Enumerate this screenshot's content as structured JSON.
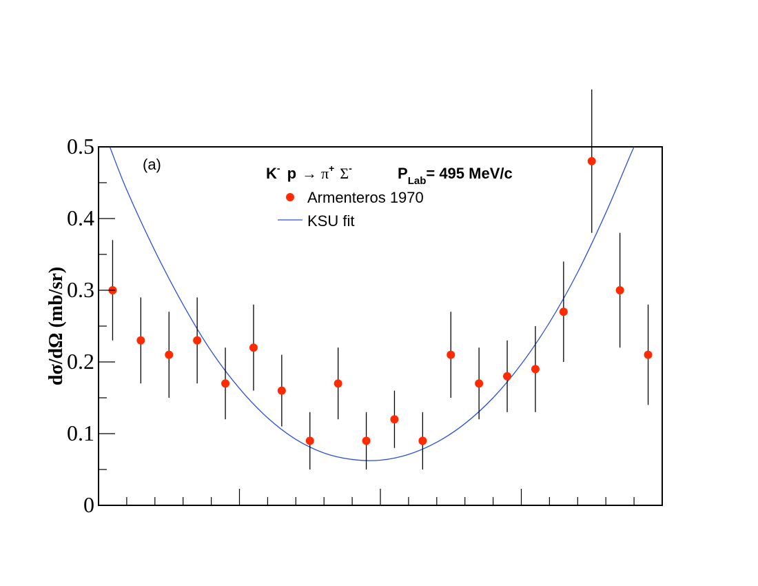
{
  "chart_data": {
    "type": "scatter",
    "panel_label": "(a)",
    "reaction": {
      "k": "K",
      "k_sup": "-",
      "p": "p",
      "arrow": "→",
      "pi": "π",
      "pi_sup": "+",
      "sigma": "Σ",
      "sigma_sup": "-",
      "plab_p": "P",
      "plab_sub": "Lab",
      "plab_value": "= 495 MeV/c"
    },
    "ylabel": "dσ/dΩ (mb/sr)",
    "xlabel": "",
    "xlim": [
      -1,
      1
    ],
    "ylim": [
      0,
      0.5
    ],
    "yticks": [
      0,
      0.1,
      0.2,
      0.3,
      0.4,
      0.5
    ],
    "ytick_labels": [
      "0",
      "0.1",
      "0.2",
      "0.3",
      "0.4",
      "0.5"
    ],
    "xticks_major": [
      -0.5,
      0,
      0.5
    ],
    "xticks_minor_step": 0.1,
    "legend": {
      "placement": "top-center",
      "entries": [
        {
          "label": "Armenteros 1970",
          "marker": "circle",
          "color": "#ff2a00"
        },
        {
          "label": "KSU fit",
          "marker": "line",
          "color": "#2a4fd6"
        }
      ]
    },
    "series": [
      {
        "name": "Armenteros 1970",
        "kind": "points",
        "color": "#ff2a00",
        "points": [
          {
            "x": -0.95,
            "y": 0.3,
            "err": 0.07
          },
          {
            "x": -0.85,
            "y": 0.23,
            "err": 0.06
          },
          {
            "x": -0.75,
            "y": 0.21,
            "err": 0.06
          },
          {
            "x": -0.65,
            "y": 0.23,
            "err": 0.06
          },
          {
            "x": -0.55,
            "y": 0.17,
            "err": 0.05
          },
          {
            "x": -0.45,
            "y": 0.22,
            "err": 0.06
          },
          {
            "x": -0.35,
            "y": 0.16,
            "err": 0.05
          },
          {
            "x": -0.25,
            "y": 0.09,
            "err": 0.04
          },
          {
            "x": -0.15,
            "y": 0.17,
            "err": 0.05
          },
          {
            "x": -0.05,
            "y": 0.09,
            "err": 0.04
          },
          {
            "x": 0.05,
            "y": 0.12,
            "err": 0.04
          },
          {
            "x": 0.15,
            "y": 0.09,
            "err": 0.04
          },
          {
            "x": 0.25,
            "y": 0.21,
            "err": 0.06
          },
          {
            "x": 0.35,
            "y": 0.17,
            "err": 0.05
          },
          {
            "x": 0.45,
            "y": 0.18,
            "err": 0.05
          },
          {
            "x": 0.55,
            "y": 0.19,
            "err": 0.06
          },
          {
            "x": 0.65,
            "y": 0.27,
            "err": 0.07
          },
          {
            "x": 0.75,
            "y": 0.48,
            "err": 0.1
          },
          {
            "x": 0.85,
            "y": 0.3,
            "err": 0.08
          },
          {
            "x": 0.95,
            "y": 0.21,
            "err": 0.07
          }
        ]
      },
      {
        "name": "KSU fit",
        "kind": "line",
        "color": "#2a4fd6",
        "points": [
          {
            "x": -0.96,
            "y": 0.5
          },
          {
            "x": -0.9,
            "y": 0.44
          },
          {
            "x": -0.8,
            "y": 0.355
          },
          {
            "x": -0.7,
            "y": 0.28
          },
          {
            "x": -0.6,
            "y": 0.215
          },
          {
            "x": -0.5,
            "y": 0.163
          },
          {
            "x": -0.4,
            "y": 0.122
          },
          {
            "x": -0.3,
            "y": 0.092
          },
          {
            "x": -0.2,
            "y": 0.073
          },
          {
            "x": -0.1,
            "y": 0.064
          },
          {
            "x": 0.0,
            "y": 0.063
          },
          {
            "x": 0.1,
            "y": 0.071
          },
          {
            "x": 0.2,
            "y": 0.088
          },
          {
            "x": 0.3,
            "y": 0.114
          },
          {
            "x": 0.4,
            "y": 0.15
          },
          {
            "x": 0.5,
            "y": 0.197
          },
          {
            "x": 0.6,
            "y": 0.255
          },
          {
            "x": 0.7,
            "y": 0.325
          },
          {
            "x": 0.8,
            "y": 0.408
          },
          {
            "x": 0.88,
            "y": 0.482
          },
          {
            "x": 0.9,
            "y": 0.5
          }
        ]
      }
    ]
  }
}
